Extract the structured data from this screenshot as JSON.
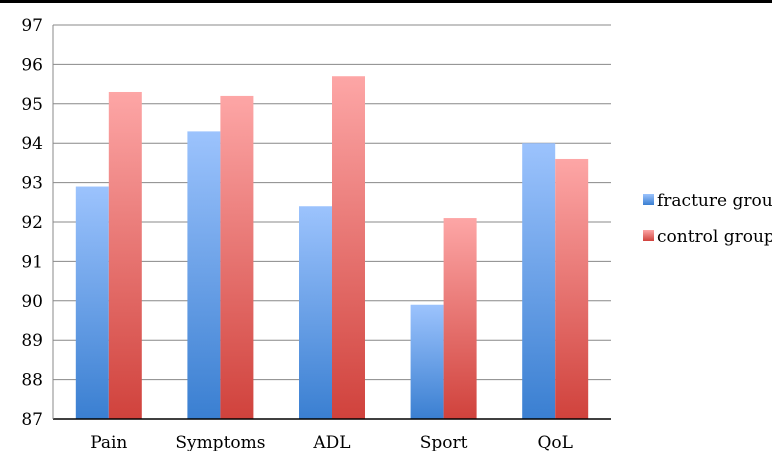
{
  "chart_data": {
    "type": "bar",
    "title": "",
    "xlabel": "",
    "ylabel": "",
    "categories": [
      "Pain",
      "Symptoms",
      "ADL",
      "Sport",
      "QoL"
    ],
    "series": [
      {
        "name": "fracture group",
        "values": [
          92.9,
          94.3,
          92.4,
          89.9,
          94.0
        ],
        "color_top": "#9cc3fd",
        "color_bottom": "#3a7fd1"
      },
      {
        "name": "control group",
        "values": [
          95.3,
          95.2,
          95.7,
          92.1,
          93.6
        ],
        "color_top": "#fda6a6",
        "color_bottom": "#d0423c"
      }
    ],
    "ylim": [
      87,
      97
    ],
    "yticks": [
      87,
      88,
      89,
      90,
      91,
      92,
      93,
      94,
      95,
      96,
      97
    ],
    "grid": true,
    "legend": "right"
  }
}
